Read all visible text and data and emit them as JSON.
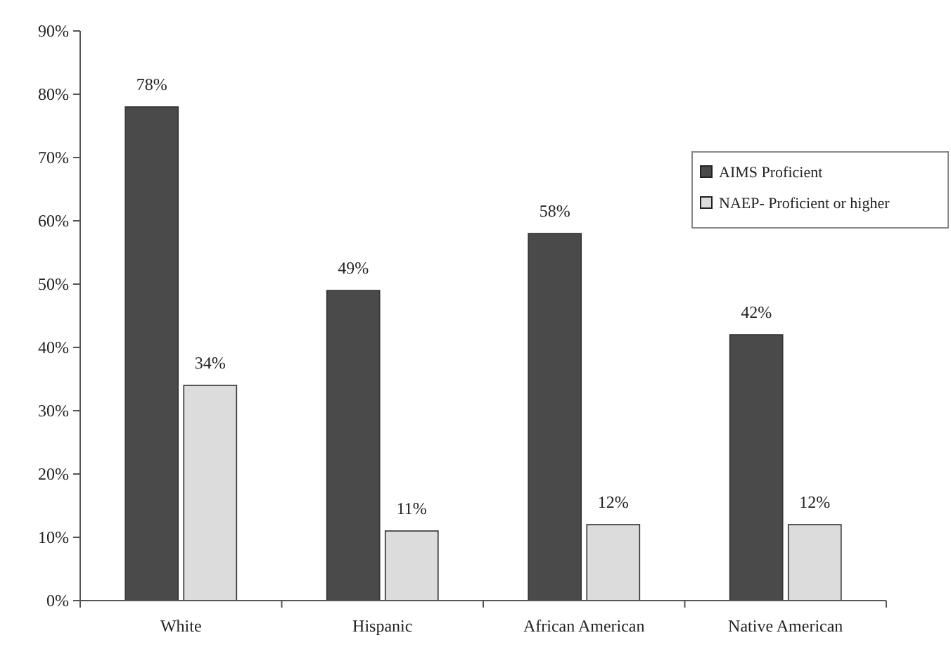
{
  "chart_data": {
    "type": "bar",
    "categories": [
      "White",
      "Hispanic",
      "African American",
      "Native American"
    ],
    "series": [
      {
        "name": "AIMS Proficient",
        "color": "#4a4a4a",
        "values": [
          78,
          49,
          58,
          42
        ],
        "value_labels": [
          "78%",
          "49%",
          "58%",
          "42%"
        ]
      },
      {
        "name": "NAEP- Proficient or higher",
        "color": "#dcdcdc",
        "values": [
          34,
          11,
          12,
          12
        ],
        "value_labels": [
          "34%",
          "11%",
          "12%",
          "12%"
        ]
      }
    ],
    "ylim": [
      0,
      90
    ],
    "yticks": [
      {
        "value": 0,
        "label": "0%"
      },
      {
        "value": 10,
        "label": "10%"
      },
      {
        "value": 20,
        "label": "20%"
      },
      {
        "value": 30,
        "label": "30%"
      },
      {
        "value": 40,
        "label": "40%"
      },
      {
        "value": 50,
        "label": "50%"
      },
      {
        "value": 60,
        "label": "60%"
      },
      {
        "value": 70,
        "label": "70%"
      },
      {
        "value": 80,
        "label": "80%"
      },
      {
        "value": 90,
        "label": "90%"
      }
    ],
    "legend": "right",
    "grid": false
  }
}
